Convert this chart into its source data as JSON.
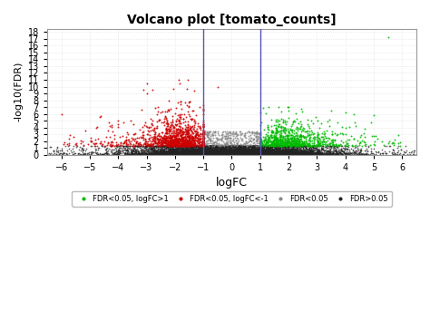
{
  "title": "Volcano plot [tomato_counts]",
  "xlabel": "logFC",
  "ylabel": "-log10(FDR)",
  "xlim": [
    -6.5,
    6.5
  ],
  "ylim": [
    0,
    18.5
  ],
  "xticks": [
    -6,
    -5,
    -4,
    -3,
    -2,
    -1,
    0,
    1,
    2,
    3,
    4,
    5,
    6
  ],
  "yticks": [
    0,
    1,
    2,
    3,
    4,
    5,
    6,
    7,
    8,
    9,
    10,
    11,
    12,
    13,
    14,
    15,
    16,
    17,
    18
  ],
  "vline_color": "#5555bb",
  "vline_positions": [
    -1,
    1
  ],
  "color_green": "#00bb00",
  "color_red": "#cc0000",
  "color_gray": "#888888",
  "color_black": "#222222",
  "fdr_threshold": 0.05,
  "fc_threshold": 1.0,
  "background_color": "#ffffff",
  "grid_color": "#dddddd",
  "legend_labels": [
    "FDR<0.05, logFC>1",
    "FDR<0.05, logFC<-1",
    "FDR<0.05",
    "FDR>0.05"
  ],
  "legend_colors": [
    "#00bb00",
    "#cc0000",
    "#888888",
    "#222222"
  ],
  "seed": 12345,
  "n_background": 8000,
  "n_red": 1200,
  "n_green": 900
}
